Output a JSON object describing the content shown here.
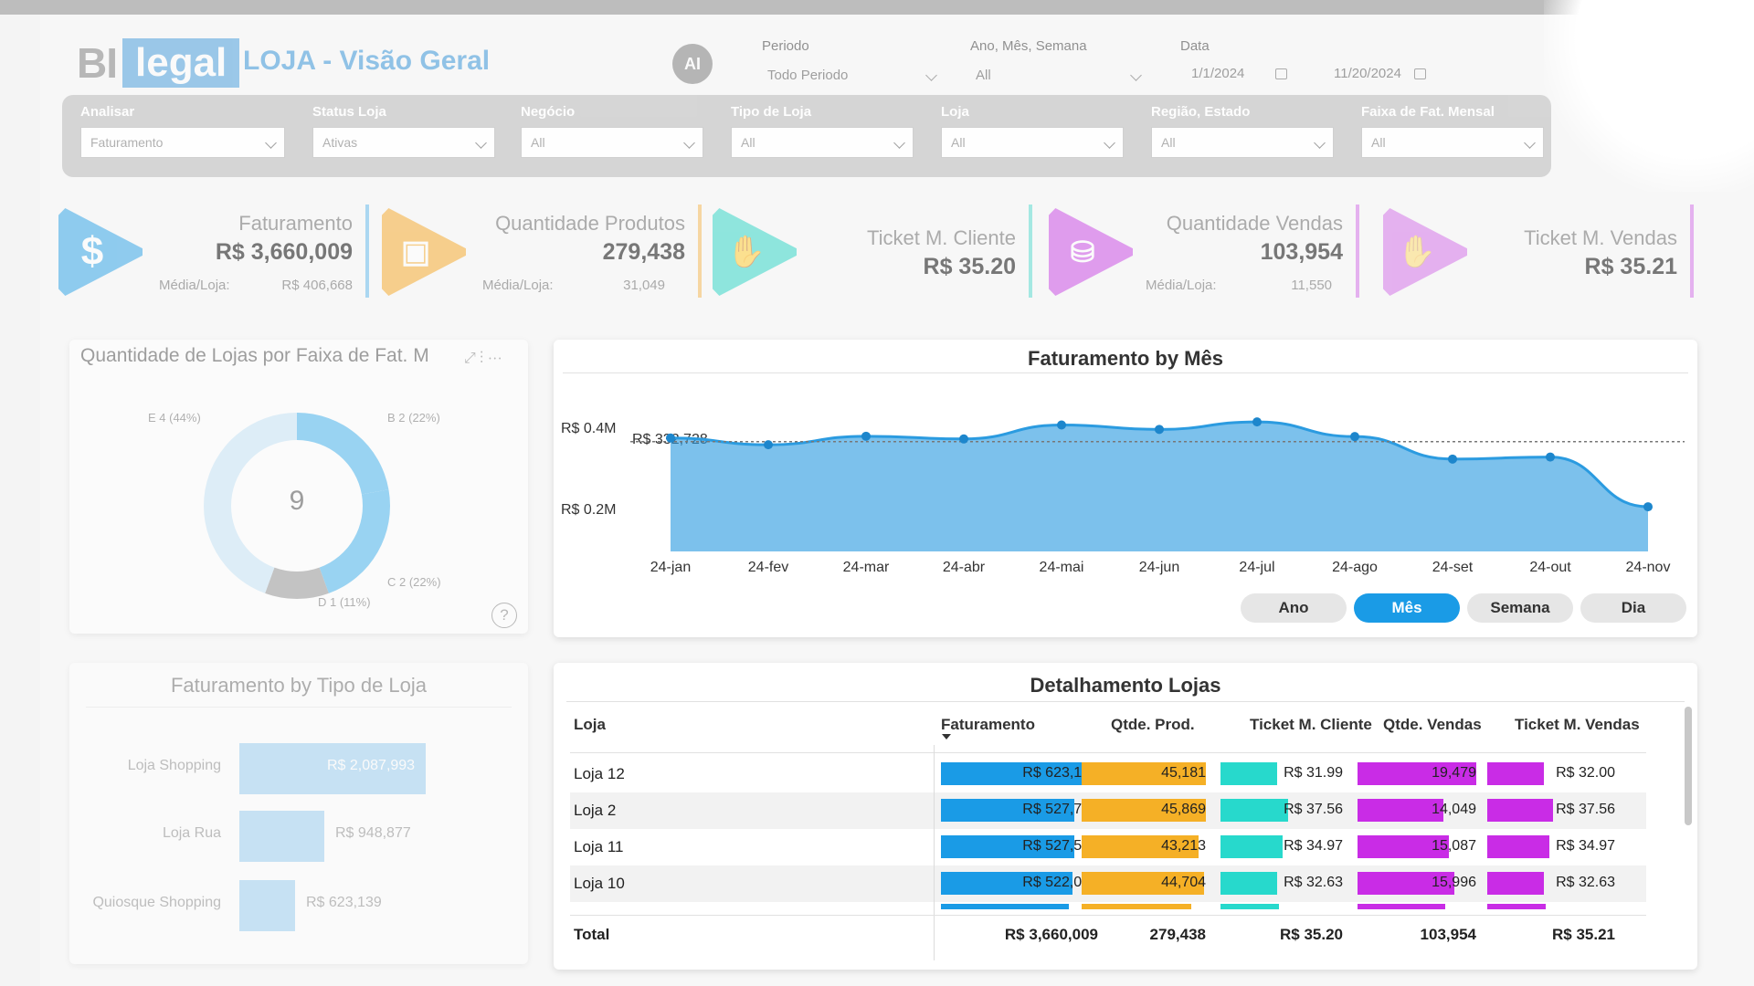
{
  "header": {
    "logo_left": "BI",
    "logo_right": "legal",
    "title": "LOJA - Visão Geral",
    "ai_label": "AI",
    "periodo_label": "Periodo",
    "periodo_value": "Todo Periodo",
    "ano_label": "Ano, Mês, Semana",
    "ano_value": "All",
    "data_label": "Data",
    "data_start": "1/1/2024",
    "data_end": "11/20/2024"
  },
  "filters": [
    {
      "label": "Analisar",
      "value": "Faturamento"
    },
    {
      "label": "Status Loja",
      "value": "Ativas"
    },
    {
      "label": "Negócio",
      "value": "All"
    },
    {
      "label": "Tipo de Loja",
      "value": "All"
    },
    {
      "label": "Loja",
      "value": "All"
    },
    {
      "label": "Região, Estado",
      "value": "All"
    },
    {
      "label": "Faixa de Fat. Mensal",
      "value": "All"
    }
  ],
  "kpis": [
    {
      "name": "Faturamento",
      "value": "R$ 3,660,009",
      "sub_label": "Média/Loja:",
      "sub_value": "R$ 406,668",
      "color": "#3aa8e8",
      "icon": "dollar-icon"
    },
    {
      "name": "Quantidade Produtos",
      "value": "279,438",
      "sub_label": "Média/Loja:",
      "sub_value": "31,049",
      "color": "#f5a623",
      "icon": "boxes-icon"
    },
    {
      "name": "Ticket M. Cliente",
      "value": "R$ 35.20",
      "sub_label": "",
      "sub_value": "",
      "color": "#27d3c4",
      "icon": "hand-coin-icon"
    },
    {
      "name": "Quantidade Vendas",
      "value": "103,954",
      "sub_label": "Média/Loja:",
      "sub_value": "11,550",
      "color": "#c02de0",
      "icon": "basket-icon"
    },
    {
      "name": "Ticket M. Vendas",
      "value": "R$ 35.21",
      "sub_label": "",
      "sub_value": "",
      "color": "#c02de0",
      "icon": "hand-coin-icon"
    }
  ],
  "donut": {
    "title": "Quantidade de Lojas por Faixa de Fat. M",
    "center": "9",
    "labels": [
      "E 4 (44%)",
      "B 2 (22%)",
      "C 2 (22%)",
      "D 1 (11%)"
    ],
    "help": "?"
  },
  "line_chart": {
    "title": "Faturamento by Mês",
    "y_ticks": [
      "R$ 0.4M",
      "R$ 0.2M"
    ],
    "first_point_label": "R$ 332,728",
    "toggles": [
      "Ano",
      "Mês",
      "Semana",
      "Dia"
    ],
    "active_toggle": "Mês"
  },
  "tipo_chart": {
    "title": "Faturamento by Tipo de Loja"
  },
  "table": {
    "title": "Detalhamento Lojas",
    "columns": [
      "Loja",
      "Faturamento",
      "Qtde. Prod.",
      "Ticket M. Cliente",
      "Qtde. Vendas",
      "Ticket M. Vendas"
    ],
    "rows": [
      {
        "loja": "Loja 12",
        "fat": "R$ 623,139",
        "prod": "45,181",
        "tmc": "R$ 31.99",
        "vendas": "19,479",
        "tmv": "R$ 32.00"
      },
      {
        "loja": "Loja 2",
        "fat": "R$ 527,704",
        "prod": "45,869",
        "tmc": "R$ 37.56",
        "vendas": "14,049",
        "tmv": "R$ 37.56"
      },
      {
        "loja": "Loja 11",
        "fat": "R$ 527,538",
        "prod": "43,213",
        "tmc": "R$ 34.97",
        "vendas": "15,087",
        "tmv": "R$ 34.97"
      },
      {
        "loja": "Loja 10",
        "fat": "R$ 522,007",
        "prod": "44,704",
        "tmc": "R$ 32.63",
        "vendas": "15,996",
        "tmv": "R$ 32.63"
      }
    ],
    "total": {
      "loja": "Total",
      "fat": "R$ 3,660,009",
      "prod": "279,438",
      "tmc": "R$ 35.20",
      "vendas": "103,954",
      "tmv": "R$ 35.21"
    }
  },
  "chart_data": [
    {
      "type": "area",
      "title": "Faturamento by Mês",
      "categories": [
        "24-jan",
        "24-fev",
        "24-mar",
        "24-abr",
        "24-mai",
        "24-jun",
        "24-jul",
        "24-ago",
        "24-set",
        "24-out",
        "24-nov"
      ],
      "values": [
        332728,
        313000,
        338000,
        330000,
        371000,
        358000,
        380000,
        337000,
        271000,
        277000,
        131000
      ],
      "average_line": 322000,
      "ylim": [
        0,
        450000
      ],
      "color": "#2b9be0"
    },
    {
      "type": "bar",
      "title": "Faturamento by Tipo de Loja",
      "categories": [
        "Loja Shopping",
        "Loja Rua",
        "Quiosque Shopping"
      ],
      "values": [
        2087993,
        948877,
        623139
      ],
      "labels": [
        "R$ 2,087,993",
        "R$ 948,877",
        "R$ 623,139"
      ]
    },
    {
      "type": "pie",
      "title": "Quantidade de Lojas por Faixa de Fat. M",
      "categories": [
        "B",
        "C",
        "D",
        "E"
      ],
      "values": [
        2,
        2,
        1,
        4
      ],
      "colors": [
        "#4db6ee",
        "#4db6ee",
        "#9a9a9a",
        "#c9e6f8"
      ]
    }
  ]
}
